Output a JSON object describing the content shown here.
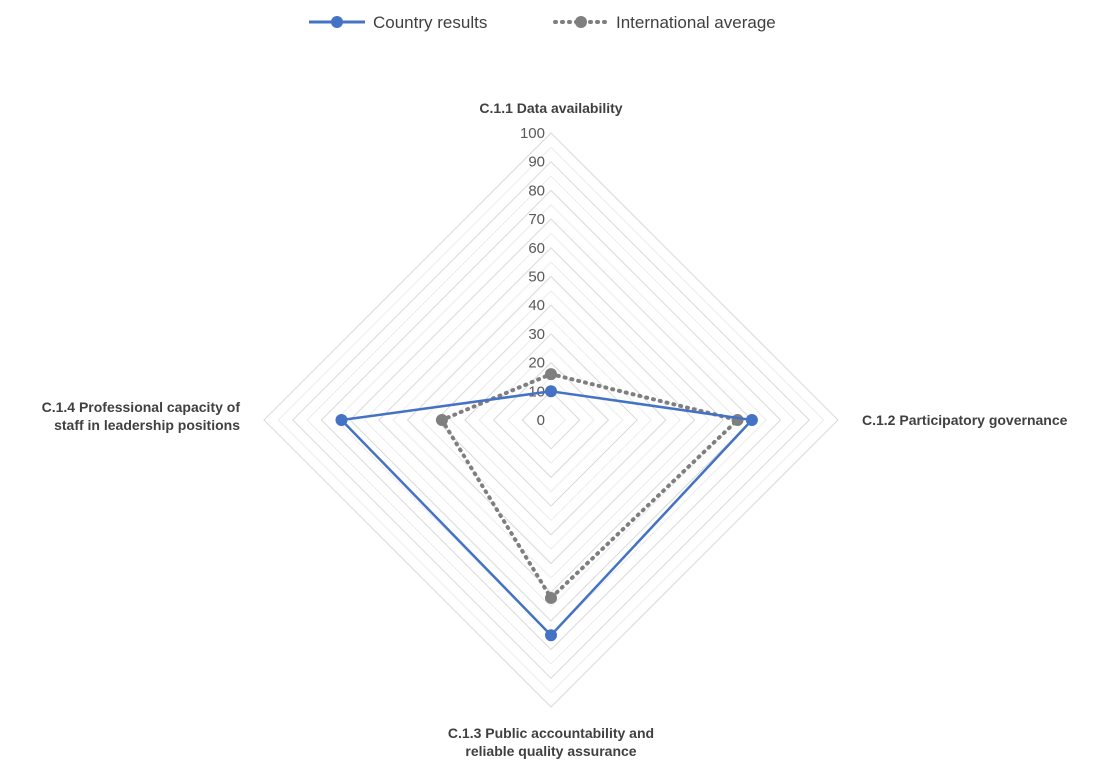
{
  "chart_data": {
    "type": "radar",
    "categories": [
      [
        "C.1.1 Data availability"
      ],
      [
        "C.1.2 Participatory governance"
      ],
      [
        "C.1.3 Public accountability and",
        "reliable quality assurance"
      ],
      [
        "C.1.4 Professional capacity of",
        "staff in leadership positions"
      ]
    ],
    "rlim": [
      0,
      100
    ],
    "ticks": [
      0,
      10,
      20,
      30,
      40,
      50,
      60,
      70,
      80,
      90,
      100
    ],
    "tick_labels": [
      "0",
      "10",
      "20",
      "30",
      "40",
      "50",
      "60",
      "70",
      "80",
      "90",
      "100"
    ],
    "minor_step": 5,
    "grid": true,
    "legend_position": "top",
    "series": [
      {
        "name": "Country results",
        "values": [
          10,
          70,
          75,
          73
        ],
        "color": "#4472C4",
        "dash": "solid"
      },
      {
        "name": "International average",
        "values": [
          16,
          65,
          62,
          38
        ],
        "color": "#7F7F7F",
        "dash": "dotted"
      }
    ]
  }
}
